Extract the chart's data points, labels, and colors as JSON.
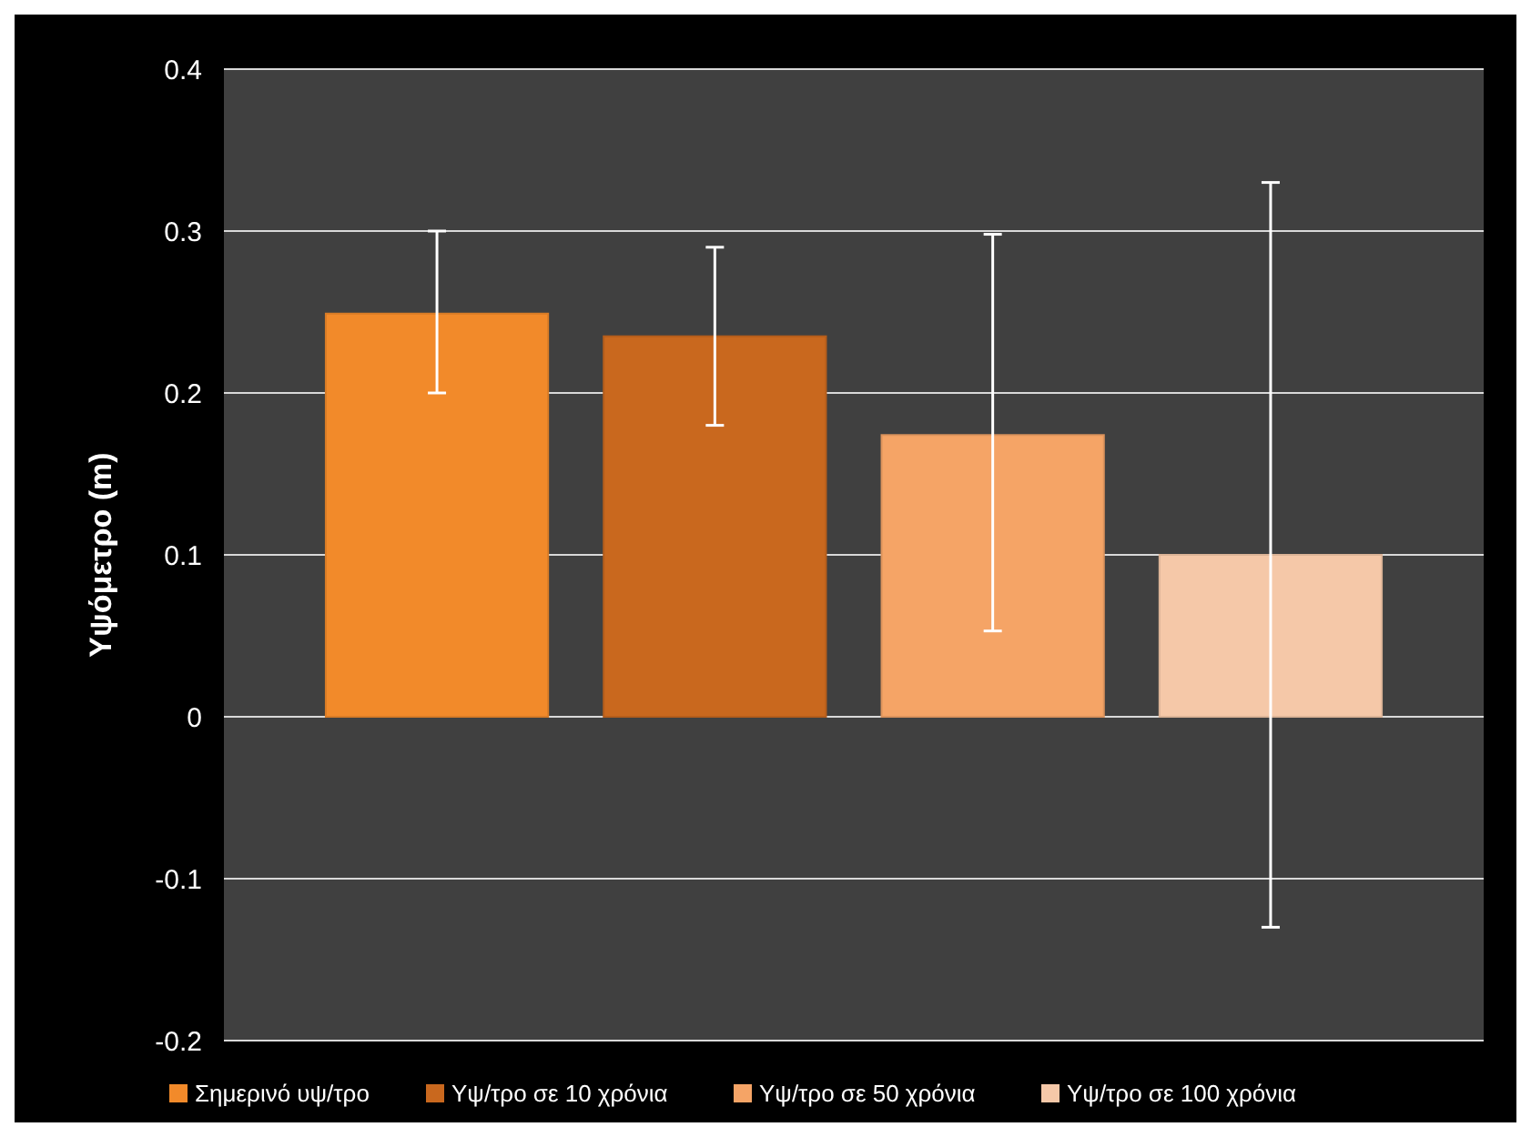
{
  "chart_data": {
    "type": "bar",
    "ylabel": "Υψόμετρο (m)",
    "categories": [
      null
    ],
    "series": [
      {
        "name": "Σημερινό υψ/τρο",
        "color": "#f28a2a",
        "values": [
          0.249
        ],
        "errors": [
          [
            0.2,
            0.3
          ]
        ]
      },
      {
        "name": "Υψ/τρο σε 10 χρόνια",
        "color": "#c9681e",
        "values": [
          0.235
        ],
        "errors": [
          [
            0.18,
            0.29
          ]
        ]
      },
      {
        "name": "Υψ/τρο σε 50 χρόνια",
        "color": "#f5a466",
        "values": [
          0.174
        ],
        "errors": [
          [
            0.053,
            0.298
          ]
        ]
      },
      {
        "name": "Υψ/τρο σε 100 χρόνια",
        "color": "#f5c8a8",
        "values": [
          0.1
        ],
        "errors": [
          [
            -0.13,
            0.33
          ]
        ]
      }
    ],
    "ylim": [
      -0.2,
      0.4
    ],
    "yticks": [
      -0.2,
      -0.1,
      0,
      0.1,
      0.2,
      0.3,
      0.4
    ],
    "grid": "y",
    "legend": "bottom",
    "tick_labels": "y"
  }
}
